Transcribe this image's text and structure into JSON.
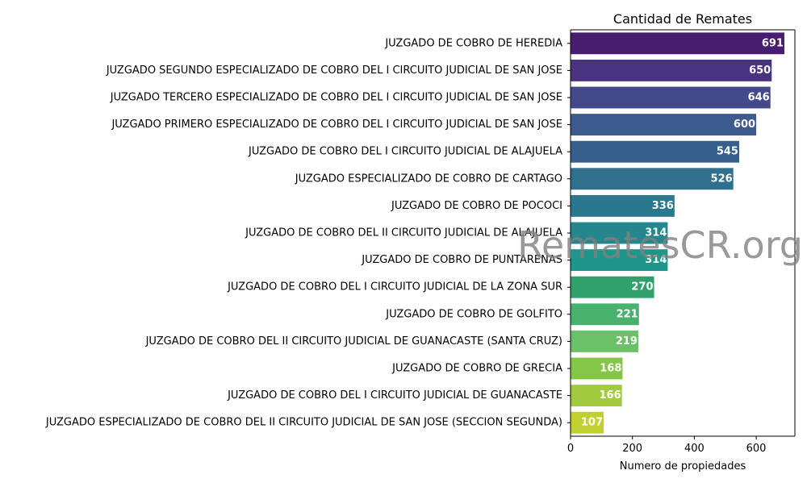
{
  "chart_data": {
    "type": "bar",
    "orientation": "horizontal",
    "title": "Cantidad de Remates",
    "xlabel": "Numero de propiedades",
    "ylabel": "",
    "xlim": [
      0,
      725
    ],
    "xticks": [
      0,
      200,
      400,
      600
    ],
    "grid": false,
    "categories": [
      "JUZGADO DE COBRO DE HEREDIA",
      "JUZGADO SEGUNDO ESPECIALIZADO DE COBRO DEL I CIRCUITO JUDICIAL DE SAN JOSE",
      "JUZGADO TERCERO ESPECIALIZADO DE COBRO DEL I CIRCUITO JUDICIAL DE SAN JOSE",
      "JUZGADO PRIMERO ESPECIALIZADO DE COBRO DEL I CIRCUITO JUDICIAL DE SAN JOSE",
      "JUZGADO DE COBRO DEL I CIRCUITO JUDICIAL DE ALAJUELA",
      "JUZGADO ESPECIALIZADO DE COBRO DE CARTAGO",
      "JUZGADO DE COBRO DE POCOCI",
      "JUZGADO DE COBRO DEL II CIRCUITO JUDICIAL DE ALAJUELA",
      "JUZGADO DE COBRO DE PUNTARENAS",
      "JUZGADO DE COBRO DEL I CIRCUITO JUDICIAL DE LA ZONA SUR",
      "JUZGADO DE COBRO DE GOLFITO",
      "JUZGADO DE COBRO DEL II CIRCUITO JUDICIAL DE GUANACASTE (SANTA CRUZ)",
      "JUZGADO DE COBRO DE GRECIA",
      "JUZGADO DE COBRO DEL I CIRCUITO JUDICIAL DE GUANACASTE",
      "JUZGADO ESPECIALIZADO DE COBRO DEL II CIRCUITO JUDICIAL DE SAN JOSE (SECCION SEGUNDA)"
    ],
    "values": [
      691,
      650,
      646,
      600,
      545,
      526,
      336,
      314,
      314,
      270,
      221,
      219,
      168,
      166,
      107
    ],
    "colors": [
      "#481c6e",
      "#47337f",
      "#424a8a",
      "#3c5a8d",
      "#365f8d",
      "#30708e",
      "#2a788e",
      "#24878e",
      "#1f968b",
      "#31a16b",
      "#49b16e",
      "#6ac168",
      "#85c646",
      "#a1ca3f",
      "#bfd030"
    ]
  },
  "watermark": "RematesCR.org"
}
